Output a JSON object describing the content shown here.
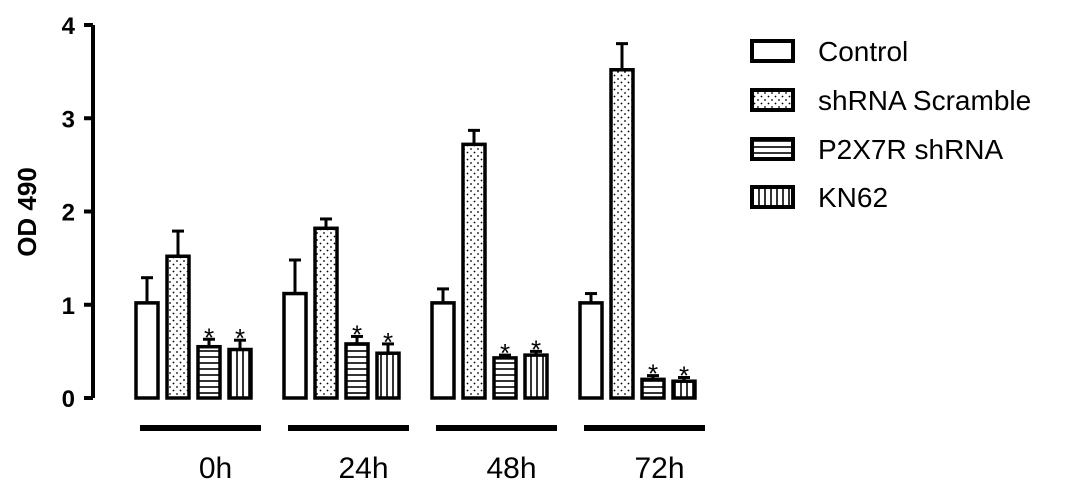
{
  "chart_data": {
    "type": "bar",
    "ylabel": "OD 490",
    "ylim": [
      0,
      4
    ],
    "yticks": [
      "0",
      "1",
      "2",
      "3",
      "4"
    ],
    "categories": [
      "0h",
      "24h",
      "48h",
      "72h"
    ],
    "series": [
      {
        "name": "Control",
        "values": [
          1.02,
          1.12,
          1.02,
          1.02
        ],
        "errors": [
          0.27,
          0.36,
          0.15,
          0.1
        ],
        "sig": [
          false,
          false,
          false,
          false
        ],
        "pattern": "empty"
      },
      {
        "name": "shRNA Scramble",
        "values": [
          1.52,
          1.82,
          2.72,
          3.52
        ],
        "errors": [
          0.27,
          0.1,
          0.15,
          0.28
        ],
        "sig": [
          false,
          false,
          false,
          false
        ],
        "pattern": "dots"
      },
      {
        "name": "P2X7R shRNA",
        "values": [
          0.55,
          0.58,
          0.43,
          0.2
        ],
        "errors": [
          0.08,
          0.08,
          0.03,
          0.04
        ],
        "sig": [
          true,
          true,
          true,
          true
        ],
        "pattern": "hlines"
      },
      {
        "name": "KN62",
        "values": [
          0.52,
          0.48,
          0.46,
          0.18
        ],
        "errors": [
          0.1,
          0.1,
          0.04,
          0.04
        ],
        "sig": [
          true,
          true,
          true,
          true
        ],
        "pattern": "vlines"
      }
    ],
    "significance_mark": "*",
    "legend_position": "right",
    "grid": false
  }
}
